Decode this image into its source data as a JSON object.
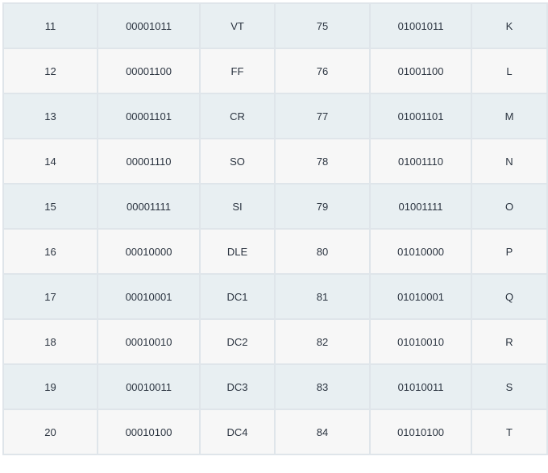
{
  "rows": [
    [
      "11",
      "00001011",
      "VT",
      "75",
      "01001011",
      "K"
    ],
    [
      "12",
      "00001100",
      "FF",
      "76",
      "01001100",
      "L"
    ],
    [
      "13",
      "00001101",
      "CR",
      "77",
      "01001101",
      "M"
    ],
    [
      "14",
      "00001110",
      "SO",
      "78",
      "01001110",
      "N"
    ],
    [
      "15",
      "00001111",
      "SI",
      "79",
      "01001111",
      "O"
    ],
    [
      "16",
      "00010000",
      "DLE",
      "80",
      "01010000",
      "P"
    ],
    [
      "17",
      "00010001",
      "DC1",
      "81",
      "01010001",
      "Q"
    ],
    [
      "18",
      "00010010",
      "DC2",
      "82",
      "01010010",
      "R"
    ],
    [
      "19",
      "00010011",
      "DC3",
      "83",
      "01010011",
      "S"
    ],
    [
      "20",
      "00010100",
      "DC4",
      "84",
      "01010100",
      "T"
    ]
  ]
}
